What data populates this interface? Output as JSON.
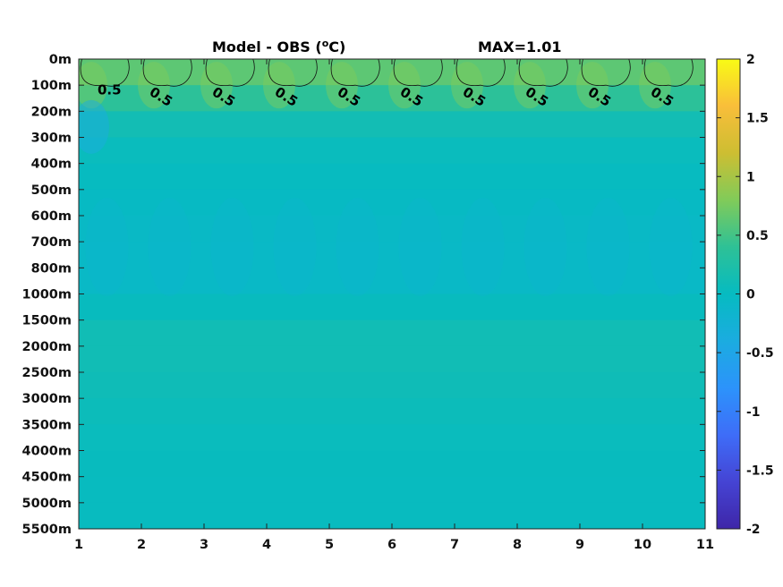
{
  "chart_data": {
    "type": "heatmap",
    "title": "Model - OBS (",
    "title_unit_sup": "o",
    "title_unit_end": "C)",
    "max_label": "MAX=1.01",
    "x": [
      1,
      2,
      3,
      4,
      5,
      6,
      7,
      8,
      9,
      10,
      11
    ],
    "xlim": [
      1,
      11
    ],
    "y_tick_labels": [
      "0m",
      "100m",
      "200m",
      "300m",
      "400m",
      "500m",
      "600m",
      "700m",
      "800m",
      "1000m",
      "1500m",
      "2000m",
      "2500m",
      "3000m",
      "3500m",
      "4000m",
      "4500m",
      "5000m",
      "5500m"
    ],
    "y_direction": "depth increasing downward",
    "colorbar": {
      "colormap": "parula",
      "clim": [
        -2,
        2
      ],
      "ticks": [
        2,
        1.5,
        1,
        0.5,
        0,
        -0.5,
        -1,
        -1.5,
        -2
      ],
      "tick_labels": [
        "2",
        "1.5",
        "1",
        "0.5",
        "0",
        "-0.5",
        "-1",
        "-1.5",
        "-2"
      ]
    },
    "contour_level": 0.5,
    "contour_labels": [
      "0.5",
      "0.5",
      "0.5",
      "0.5",
      "0.5",
      "0.5",
      "0.5",
      "0.5",
      "0.5",
      "0.5"
    ],
    "value_by_depth_level": [
      {
        "depth": "0m",
        "approx_value": 0.7
      },
      {
        "depth": "100m",
        "approx_value": 0.55
      },
      {
        "depth": "200m",
        "approx_value": 0.2
      },
      {
        "depth": "300m",
        "approx_value": 0.05
      },
      {
        "depth": "400m",
        "approx_value": 0.02
      },
      {
        "depth": "500m",
        "approx_value": 0.0
      },
      {
        "depth": "600m",
        "approx_value": -0.05
      },
      {
        "depth": "700m",
        "approx_value": -0.05
      },
      {
        "depth": "800m",
        "approx_value": -0.08
      },
      {
        "depth": "1000m",
        "approx_value": -0.05
      },
      {
        "depth": "1500m",
        "approx_value": 0.1
      },
      {
        "depth": "2000m",
        "approx_value": 0.12
      },
      {
        "depth": "2500m",
        "approx_value": 0.1
      },
      {
        "depth": "3000m",
        "approx_value": 0.08
      },
      {
        "depth": "3500m",
        "approx_value": 0.05
      },
      {
        "depth": "4000m",
        "approx_value": 0.03
      },
      {
        "depth": "4500m",
        "approx_value": 0.02
      },
      {
        "depth": "5000m",
        "approx_value": 0.02
      },
      {
        "depth": "5500m",
        "approx_value": 0.02
      }
    ],
    "grid": false
  }
}
